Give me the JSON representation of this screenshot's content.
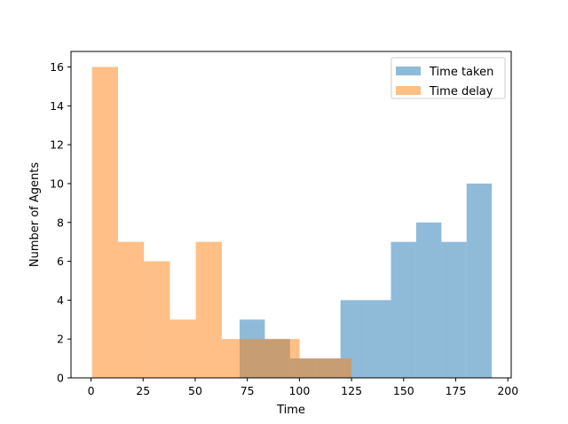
{
  "chart_data": {
    "type": "bar",
    "title": "",
    "xlabel": "Time",
    "ylabel": "Number of Agents",
    "xlim": [
      -9.6,
      201.6
    ],
    "ylim": [
      0,
      16.8
    ],
    "xticks": [
      0,
      25,
      50,
      75,
      100,
      125,
      150,
      175,
      200
    ],
    "yticks": [
      0,
      2,
      4,
      6,
      8,
      10,
      12,
      14,
      16
    ],
    "grid": false,
    "legend_position": "top-right",
    "histogram": true,
    "series": [
      {
        "name": "Time taken",
        "color": "#1f77b4",
        "alpha": 0.5,
        "bins": [
          {
            "x0": 71.3,
            "x1": 83.4,
            "value": 3
          },
          {
            "x0": 83.4,
            "x1": 95.5,
            "value": 2
          },
          {
            "x0": 95.5,
            "x1": 107.6,
            "value": 1
          },
          {
            "x0": 107.6,
            "x1": 119.7,
            "value": 1
          },
          {
            "x0": 119.7,
            "x1": 131.8,
            "value": 4
          },
          {
            "x0": 131.8,
            "x1": 143.9,
            "value": 4
          },
          {
            "x0": 143.9,
            "x1": 156.0,
            "value": 7
          },
          {
            "x0": 156.0,
            "x1": 168.1,
            "value": 8
          },
          {
            "x0": 168.1,
            "x1": 180.2,
            "value": 7
          },
          {
            "x0": 180.2,
            "x1": 192.3,
            "value": 10
          }
        ]
      },
      {
        "name": "Time delay",
        "color": "#ff7f0e",
        "alpha": 0.5,
        "bins": [
          {
            "x0": 0.5,
            "x1": 12.95,
            "value": 16
          },
          {
            "x0": 12.95,
            "x1": 25.4,
            "value": 7
          },
          {
            "x0": 25.4,
            "x1": 37.85,
            "value": 6
          },
          {
            "x0": 37.85,
            "x1": 50.3,
            "value": 3
          },
          {
            "x0": 50.3,
            "x1": 62.75,
            "value": 7
          },
          {
            "x0": 62.75,
            "x1": 75.2,
            "value": 2
          },
          {
            "x0": 75.2,
            "x1": 87.65,
            "value": 2
          },
          {
            "x0": 87.65,
            "x1": 100.1,
            "value": 2
          },
          {
            "x0": 100.1,
            "x1": 112.55,
            "value": 1
          },
          {
            "x0": 112.55,
            "x1": 125.0,
            "value": 1
          }
        ]
      }
    ]
  }
}
